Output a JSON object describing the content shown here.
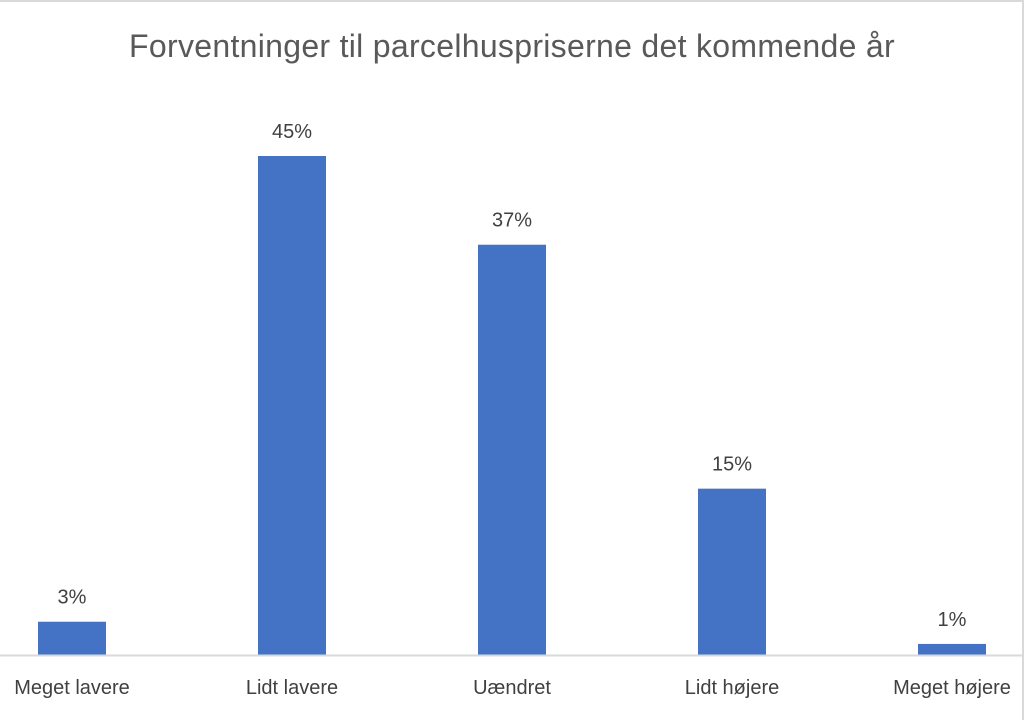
{
  "chart_data": {
    "type": "bar",
    "title": "Forventninger til parcelhuspriserne det kommende år",
    "categories": [
      "Meget lavere",
      "Lidt lavere",
      "Uændret",
      "Lidt højere",
      "Meget højere"
    ],
    "values": [
      3,
      45,
      37,
      15,
      1
    ],
    "data_labels": [
      "3%",
      "45%",
      "37%",
      "15%",
      "1%"
    ],
    "unit": "%",
    "ylim": [
      0,
      50
    ],
    "xlabel": "",
    "ylabel": "",
    "grid": false,
    "legend": "none",
    "bar_color": "#4472c4",
    "axis_color": "#d9d9d9"
  }
}
